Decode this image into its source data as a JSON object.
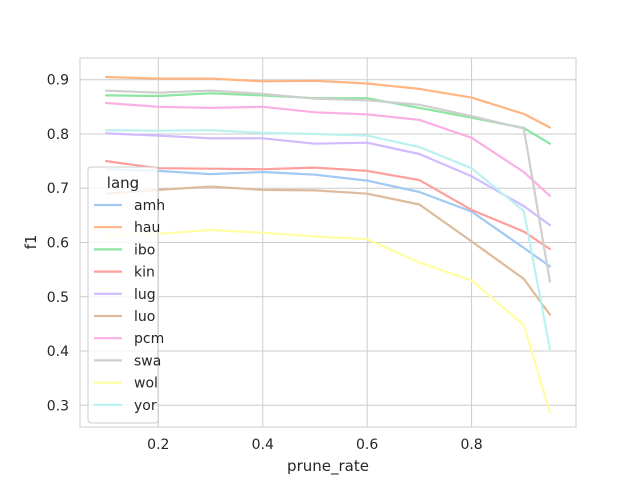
{
  "chart_data": {
    "type": "line",
    "xlabel": "prune_rate",
    "ylabel": "f1",
    "xlim": [
      0.05,
      1.0
    ],
    "ylim": [
      0.26,
      0.94
    ],
    "xticks": [
      0.2,
      0.4,
      0.6,
      0.8
    ],
    "yticks": [
      0.3,
      0.4,
      0.5,
      0.6,
      0.7,
      0.8,
      0.9
    ],
    "grid": true,
    "legend": {
      "title": "lang",
      "placement": "lower-left"
    },
    "x": [
      0.1,
      0.2,
      0.3,
      0.4,
      0.5,
      0.6,
      0.7,
      0.8,
      0.9,
      0.95
    ],
    "series": [
      {
        "name": "amh",
        "color": "#a1c9f4",
        "values": [
          0.735,
          0.732,
          0.726,
          0.73,
          0.725,
          0.714,
          0.693,
          0.657,
          0.59,
          0.556
        ]
      },
      {
        "name": "hau",
        "color": "#ffb482",
        "values": [
          0.905,
          0.902,
          0.902,
          0.897,
          0.898,
          0.893,
          0.883,
          0.867,
          0.837,
          0.812
        ]
      },
      {
        "name": "ibo",
        "color": "#8de5a1",
        "values": [
          0.871,
          0.87,
          0.875,
          0.871,
          0.866,
          0.866,
          0.848,
          0.83,
          0.811,
          0.782
        ]
      },
      {
        "name": "kin",
        "color": "#ff9f9b",
        "values": [
          0.75,
          0.737,
          0.736,
          0.735,
          0.738,
          0.732,
          0.715,
          0.66,
          0.62,
          0.588
        ]
      },
      {
        "name": "lug",
        "color": "#d0bbff",
        "values": [
          0.801,
          0.797,
          0.792,
          0.792,
          0.782,
          0.784,
          0.763,
          0.722,
          0.667,
          0.632
        ]
      },
      {
        "name": "luo",
        "color": "#debb9b",
        "values": [
          0.69,
          0.697,
          0.703,
          0.697,
          0.696,
          0.69,
          0.67,
          0.602,
          0.533,
          0.467
        ]
      },
      {
        "name": "pcm",
        "color": "#fab0e4",
        "values": [
          0.857,
          0.85,
          0.848,
          0.85,
          0.84,
          0.836,
          0.826,
          0.793,
          0.73,
          0.686
        ]
      },
      {
        "name": "swa",
        "color": "#cfcfcf",
        "values": [
          0.88,
          0.876,
          0.88,
          0.874,
          0.865,
          0.862,
          0.854,
          0.833,
          0.81,
          0.528
        ]
      },
      {
        "name": "wol",
        "color": "#fffea3",
        "values": [
          0.613,
          0.616,
          0.623,
          0.618,
          0.611,
          0.606,
          0.563,
          0.53,
          0.448,
          0.287
        ]
      },
      {
        "name": "yor",
        "color": "#b9f2f0",
        "values": [
          0.807,
          0.806,
          0.807,
          0.802,
          0.8,
          0.797,
          0.776,
          0.737,
          0.658,
          0.404
        ]
      }
    ]
  }
}
